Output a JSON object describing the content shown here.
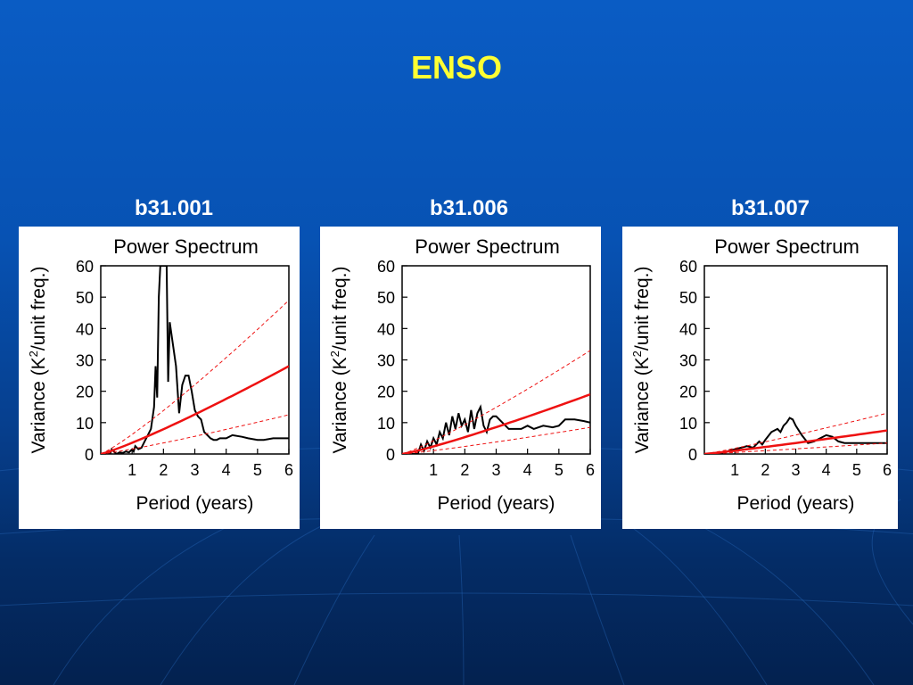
{
  "slide": {
    "title": "ENSO"
  },
  "colors": {
    "title": "#ffff33",
    "spectrum": "#000000",
    "fit": "#ee1111",
    "bounds": "#ee1111"
  },
  "chart_data": [
    {
      "run_label": "b31.001",
      "type": "line",
      "title": "Power Spectrum",
      "xlabel": "Period (years)",
      "ylabel_pre": "Variance (K",
      "ylabel_sup": "2",
      "ylabel_post": "/unit freq.)",
      "xlim": [
        0,
        6
      ],
      "ylim": [
        0,
        60
      ],
      "xticks": [
        1,
        2,
        3,
        4,
        5,
        6
      ],
      "yticks": [
        0,
        10,
        20,
        30,
        40,
        50,
        60
      ],
      "series": [
        {
          "role": "spectrum",
          "x": [
            0.1,
            0.3,
            0.35,
            0.5,
            0.6,
            0.7,
            0.8,
            0.9,
            1.0,
            1.05,
            1.1,
            1.2,
            1.3,
            1.4,
            1.5,
            1.6,
            1.7,
            1.75,
            1.8,
            1.85,
            1.9,
            1.95,
            2.0,
            2.05,
            2.1,
            2.15,
            2.2,
            2.3,
            2.4,
            2.5,
            2.6,
            2.7,
            2.8,
            2.9,
            3.0,
            3.1,
            3.2,
            3.3,
            3.4,
            3.5,
            3.6,
            3.7,
            3.8,
            4.0,
            4.2,
            4.5,
            4.7,
            5.0,
            5.2,
            5.5,
            6.0
          ],
          "values": [
            0,
            0,
            1.5,
            0,
            0.5,
            0.3,
            0.8,
            0.5,
            1.5,
            0.8,
            2.5,
            1.5,
            2,
            4,
            6,
            8,
            15,
            28,
            18,
            50,
            60,
            60,
            60,
            60,
            60,
            23,
            42,
            35,
            28,
            13,
            22,
            25,
            25,
            20,
            14,
            12,
            11,
            7,
            6,
            5,
            4.5,
            4.5,
            5,
            5,
            6,
            5.5,
            5,
            4.5,
            4.5,
            5,
            5
          ]
        },
        {
          "role": "red-noise-fit",
          "x": [
            0,
            6
          ],
          "values": [
            0,
            28
          ],
          "shape": 1.15
        },
        {
          "role": "upper-bound",
          "x": [
            0,
            6
          ],
          "values": [
            0,
            49
          ],
          "shape": 1.15
        },
        {
          "role": "lower-bound",
          "x": [
            0,
            6
          ],
          "values": [
            0,
            12.5
          ],
          "shape": 1.15
        }
      ]
    },
    {
      "run_label": "b31.006",
      "type": "line",
      "title": "Power Spectrum",
      "xlabel": "Period (years)",
      "ylabel_pre": "Variance (K",
      "ylabel_sup": "2",
      "ylabel_post": "/unit freq.)",
      "xlim": [
        0,
        6
      ],
      "ylim": [
        0,
        60
      ],
      "xticks": [
        1,
        2,
        3,
        4,
        5,
        6
      ],
      "yticks": [
        0,
        10,
        20,
        30,
        40,
        50,
        60
      ],
      "series": [
        {
          "role": "spectrum",
          "x": [
            0.1,
            0.5,
            0.6,
            0.7,
            0.8,
            0.9,
            1.0,
            1.1,
            1.2,
            1.3,
            1.4,
            1.5,
            1.6,
            1.7,
            1.8,
            1.9,
            2.0,
            2.1,
            2.2,
            2.3,
            2.4,
            2.5,
            2.6,
            2.7,
            2.8,
            2.9,
            3.0,
            3.2,
            3.4,
            3.6,
            3.8,
            4.0,
            4.2,
            4.5,
            4.8,
            5.0,
            5.2,
            5.5,
            5.8,
            6.0
          ],
          "values": [
            0,
            0,
            3,
            1,
            4,
            2,
            5,
            3,
            7,
            5,
            10,
            6,
            12,
            8,
            13,
            9,
            11,
            7,
            14,
            8,
            13,
            15,
            9,
            7,
            11,
            12,
            12,
            10,
            8,
            8,
            8,
            9,
            8,
            9,
            8.5,
            9,
            11,
            11,
            10.5,
            10
          ]
        },
        {
          "role": "red-noise-fit",
          "x": [
            0,
            6
          ],
          "values": [
            0,
            19
          ],
          "shape": 1.15
        },
        {
          "role": "upper-bound",
          "x": [
            0,
            6
          ],
          "values": [
            0,
            33
          ],
          "shape": 1.15
        },
        {
          "role": "lower-bound",
          "x": [
            0,
            6
          ],
          "values": [
            0,
            8.5
          ],
          "shape": 1.15
        }
      ]
    },
    {
      "run_label": "b31.007",
      "type": "line",
      "title": "Power Spectrum",
      "xlabel": "Period (years)",
      "ylabel_pre": "Variance (K",
      "ylabel_sup": "2",
      "ylabel_post": "/unit freq.)",
      "xlim": [
        0,
        6
      ],
      "ylim": [
        0,
        60
      ],
      "xticks": [
        1,
        2,
        3,
        4,
        5,
        6
      ],
      "yticks": [
        0,
        10,
        20,
        30,
        40,
        50,
        60
      ],
      "series": [
        {
          "role": "spectrum",
          "x": [
            0.1,
            0.6,
            0.8,
            1.0,
            1.2,
            1.4,
            1.6,
            1.8,
            1.9,
            2.0,
            2.2,
            2.4,
            2.5,
            2.6,
            2.7,
            2.8,
            2.9,
            3.0,
            3.2,
            3.4,
            3.6,
            3.8,
            4.0,
            4.2,
            4.4,
            4.6,
            5.0,
            5.5,
            6.0
          ],
          "values": [
            0,
            0,
            1,
            1.5,
            2,
            2.5,
            2,
            4,
            3,
            4.5,
            7,
            8,
            7,
            9,
            10,
            11.5,
            11,
            9,
            6,
            3.5,
            4,
            5,
            6,
            5.5,
            4,
            3.5,
            3.5,
            3.5,
            3.5
          ]
        },
        {
          "role": "red-noise-fit",
          "x": [
            0,
            6
          ],
          "values": [
            0,
            7.5
          ],
          "shape": 1.1
        },
        {
          "role": "upper-bound",
          "x": [
            0,
            6
          ],
          "values": [
            0,
            13
          ],
          "shape": 1.1
        },
        {
          "role": "lower-bound",
          "x": [
            0,
            6
          ],
          "values": [
            0,
            3.5
          ],
          "shape": 1.1
        }
      ]
    }
  ]
}
